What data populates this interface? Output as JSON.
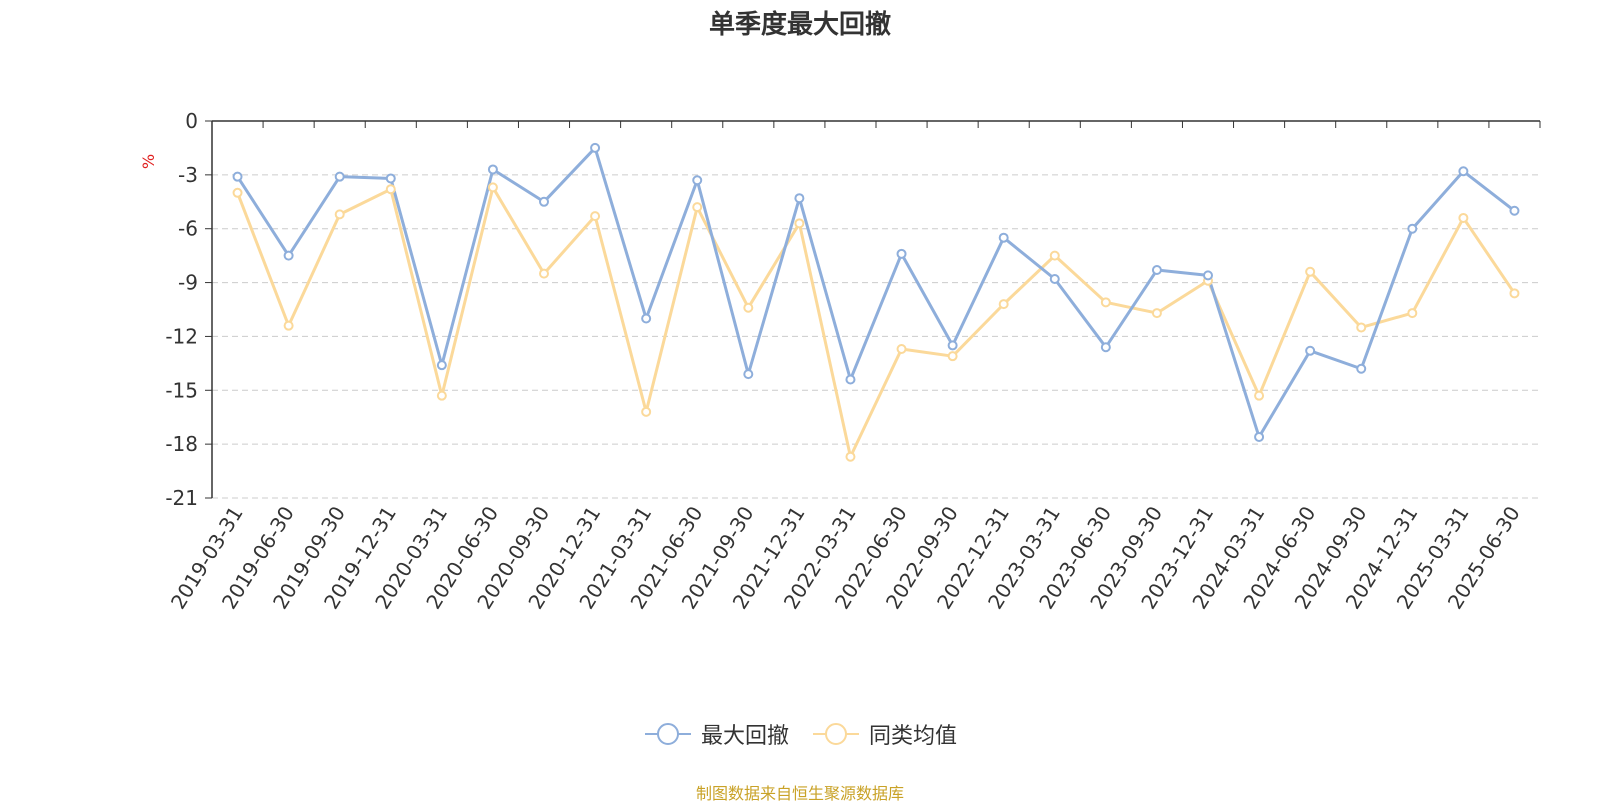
{
  "title": "单季度最大回撤",
  "unit": "%",
  "source": "制图数据来自恒生聚源数据库",
  "colors": {
    "series1": "#8eaedb",
    "series2": "#fbd99a",
    "axis": "#333333",
    "grid": "#cccccc"
  },
  "chart_data": {
    "type": "line",
    "categories": [
      "2019-03-31",
      "2019-06-30",
      "2019-09-30",
      "2019-12-31",
      "2020-03-31",
      "2020-06-30",
      "2020-09-30",
      "2020-12-31",
      "2021-03-31",
      "2021-06-30",
      "2021-09-30",
      "2021-12-31",
      "2022-03-31",
      "2022-06-30",
      "2022-09-30",
      "2022-12-31",
      "2023-03-31",
      "2023-06-30",
      "2023-09-30",
      "2023-12-31",
      "2024-03-31",
      "2024-06-30",
      "2024-09-30",
      "2024-12-31",
      "2025-03-31",
      "2025-06-30"
    ],
    "series": [
      {
        "name": "最大回撤",
        "values": [
          -3.1,
          -7.5,
          -3.1,
          -3.2,
          -13.6,
          -2.7,
          -4.5,
          -1.5,
          -11.0,
          -3.3,
          -14.1,
          -4.3,
          -14.4,
          -7.4,
          -12.5,
          -6.5,
          -8.8,
          -12.6,
          -8.3,
          -8.6,
          -17.6,
          -12.8,
          -13.8,
          -6.0,
          -2.8,
          -5.0
        ]
      },
      {
        "name": "同类均值",
        "values": [
          -4.0,
          -11.4,
          -5.2,
          -3.8,
          -15.3,
          -3.7,
          -8.5,
          -5.3,
          -16.2,
          -4.8,
          -10.4,
          -5.7,
          -18.7,
          -12.7,
          -13.1,
          -10.2,
          -7.5,
          -10.1,
          -10.7,
          -8.9,
          -15.3,
          -8.4,
          -11.5,
          -10.7,
          -5.4,
          -9.6
        ]
      }
    ],
    "yticks": [
      "0",
      "-3",
      "-6",
      "-9",
      "-12",
      "-15",
      "-18",
      "-21"
    ],
    "ylim": [
      -21,
      0
    ],
    "grid": true,
    "legend_position": "bottom-center"
  }
}
